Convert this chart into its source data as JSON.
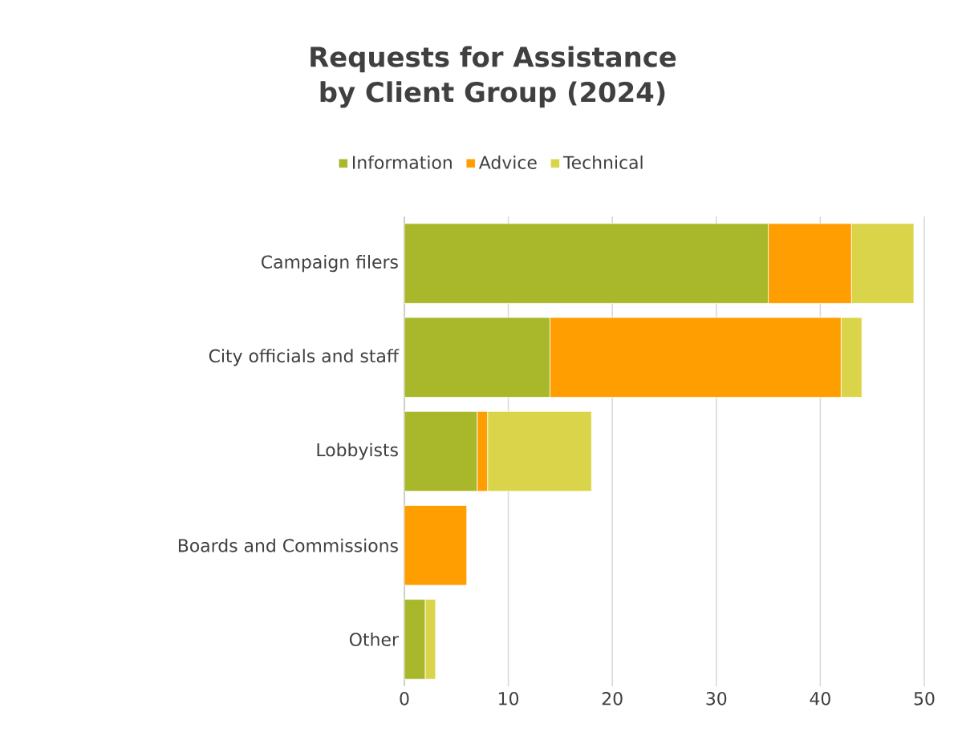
{
  "chart_data": {
    "type": "bar",
    "orientation": "horizontal",
    "stacked": true,
    "title": "Requests for Assistance\nby Client Group (2024)",
    "categories": [
      "Campaign filers",
      "City officials and staff",
      "Lobbyists",
      "Boards and Commissions",
      "Other"
    ],
    "series": [
      {
        "name": "Information",
        "color": "#a9b82a",
        "values": [
          35,
          14,
          7,
          0,
          2
        ]
      },
      {
        "name": "Advice",
        "color": "#ff9e00",
        "values": [
          8,
          28,
          1,
          6,
          0
        ]
      },
      {
        "name": "Technical",
        "color": "#d9d44a",
        "values": [
          6,
          2,
          10,
          0,
          1
        ]
      }
    ],
    "xlim": [
      0,
      50
    ],
    "xticks": [
      0,
      10,
      20,
      30,
      40,
      50
    ],
    "grid": "x",
    "legend": "top"
  }
}
